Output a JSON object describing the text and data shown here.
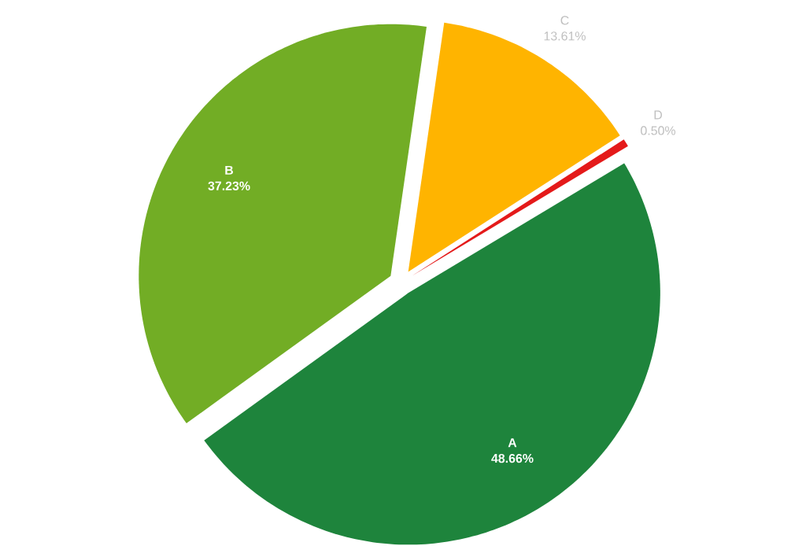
{
  "chart_data": {
    "type": "pie",
    "categories": [
      "A",
      "B",
      "C",
      "D"
    ],
    "values": [
      48.66,
      37.23,
      13.61,
      0.5
    ],
    "value_labels": [
      "48.66%",
      "37.23%",
      "13.61%",
      "0.50%"
    ],
    "colors": [
      "#1e843c",
      "#72ad25",
      "#ffb400",
      "#e41a1a"
    ]
  }
}
